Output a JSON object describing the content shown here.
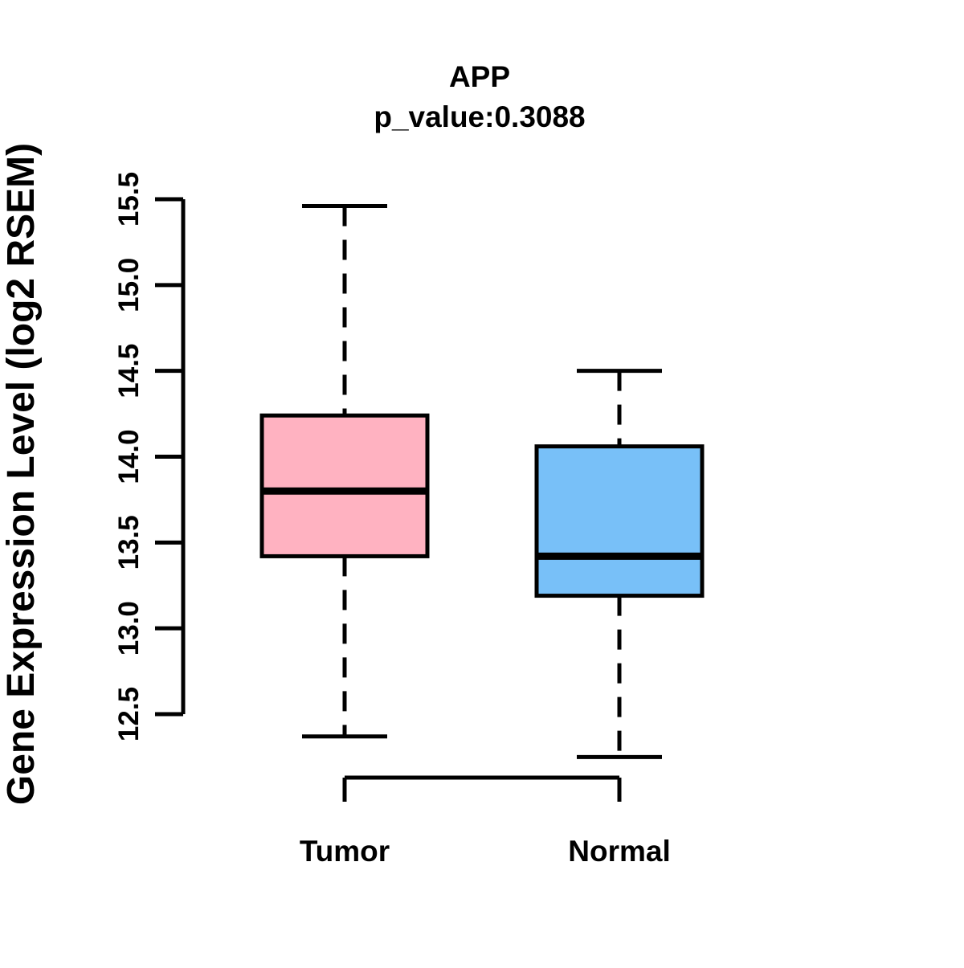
{
  "chart_data": {
    "type": "boxplot",
    "title": "APP",
    "subtitle": "p_value:0.3088",
    "ylabel": "Gene Expression Level (log2 RSEM)",
    "xlabel": "",
    "categories": [
      "Tumor",
      "Normal"
    ],
    "y_ticks": [
      12.5,
      13.0,
      13.5,
      14.0,
      14.5,
      15.0,
      15.5
    ],
    "ylim": [
      12.2,
      15.5
    ],
    "grid": false,
    "legend": "none",
    "colors": {
      "tumor_box": "#FFB2C1",
      "normal_box": "#78C0F8",
      "line": "#000000",
      "background": "#FFFFFF"
    },
    "groups": [
      {
        "name": "Tumor",
        "color": "#FFB2C1",
        "whisker_low": 12.37,
        "q1": 13.42,
        "median": 13.8,
        "q3": 14.24,
        "whisker_high": 15.46
      },
      {
        "name": "Normal",
        "color": "#78C0F8",
        "whisker_low": 12.25,
        "q1": 13.19,
        "median": 13.42,
        "q3": 14.06,
        "whisker_high": 14.5
      }
    ]
  }
}
